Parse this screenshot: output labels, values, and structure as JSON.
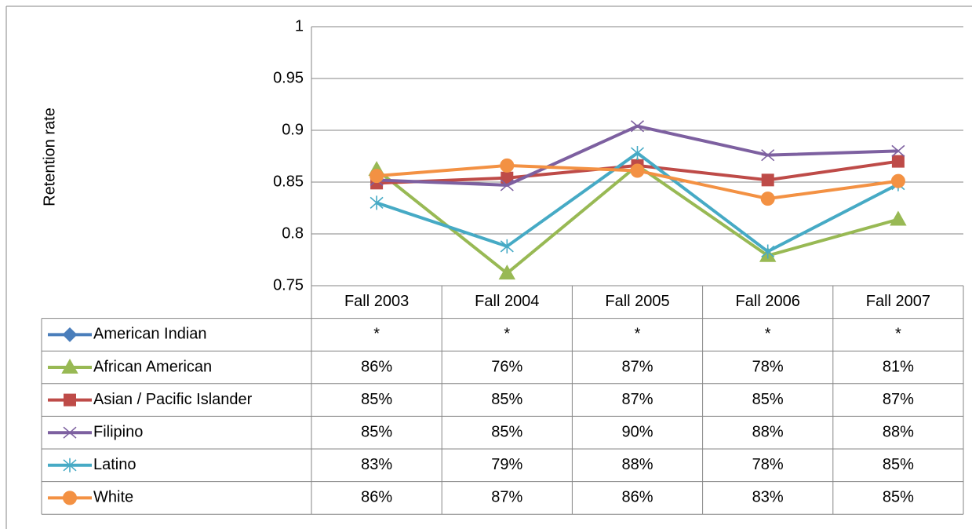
{
  "chart_data": {
    "type": "line",
    "y_label": "Retention rate",
    "categories": [
      "Fall 2003",
      "Fall 2004",
      "Fall 2005",
      "Fall 2006",
      "Fall 2007"
    ],
    "ylim": [
      0.75,
      1
    ],
    "yticks": [
      0.75,
      0.8,
      0.85,
      0.9,
      0.95,
      1
    ],
    "grid": true,
    "series": [
      {
        "name": "American Indian",
        "color": "#4a7ebb",
        "marker": "diamond",
        "values": [
          null,
          null,
          null,
          null,
          null
        ],
        "value_labels": [
          "*",
          "*",
          "*",
          "*",
          "*"
        ]
      },
      {
        "name": "African American",
        "color": "#98b954",
        "marker": "triangle",
        "values": [
          0.862,
          0.762,
          0.866,
          0.779,
          0.814
        ],
        "value_labels": [
          "86%",
          "76%",
          "87%",
          "78%",
          "81%"
        ]
      },
      {
        "name": "Asian / Pacific Islander",
        "color": "#be4b48",
        "marker": "square",
        "values": [
          0.849,
          0.854,
          0.866,
          0.852,
          0.87
        ],
        "value_labels": [
          "85%",
          "85%",
          "87%",
          "85%",
          "87%"
        ]
      },
      {
        "name": "Filipino",
        "color": "#7d60a0",
        "marker": "x",
        "values": [
          0.852,
          0.847,
          0.904,
          0.876,
          0.88
        ],
        "value_labels": [
          "85%",
          "85%",
          "90%",
          "88%",
          "88%"
        ]
      },
      {
        "name": "Latino",
        "color": "#46aac5",
        "marker": "asterisk",
        "values": [
          0.83,
          0.788,
          0.878,
          0.783,
          0.848
        ],
        "value_labels": [
          "83%",
          "79%",
          "88%",
          "78%",
          "85%"
        ]
      },
      {
        "name": "White",
        "color": "#f39143",
        "marker": "circle",
        "values": [
          0.856,
          0.866,
          0.861,
          0.834,
          0.851
        ],
        "value_labels": [
          "86%",
          "87%",
          "86%",
          "83%",
          "85%"
        ]
      }
    ]
  }
}
